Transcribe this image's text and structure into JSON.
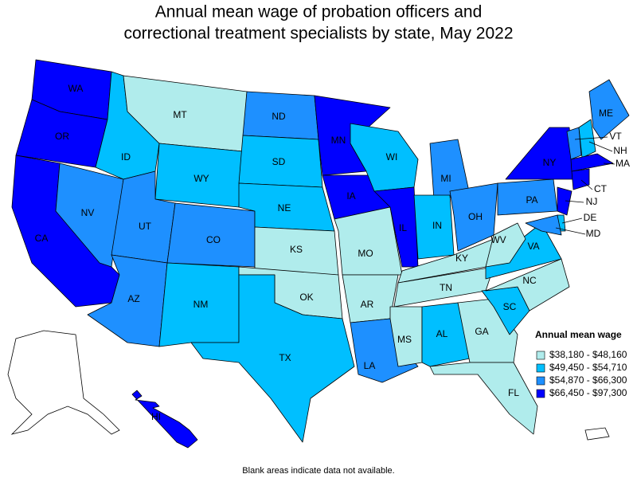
{
  "map": {
    "title": [
      "Annual mean wage of probation officers and",
      "correctional treatment specialists by state, May 2022"
    ],
    "legend": {
      "title": "Annual mean wage",
      "classes": [
        {
          "label": "$38,180 - $48,160",
          "color": "#b0ecec"
        },
        {
          "label": "$49,450 - $54,710",
          "color": "#00bfff"
        },
        {
          "label": "$54,870 - $66,300",
          "color": "#1e90ff"
        },
        {
          "label": "$66,450 - $97,300",
          "color": "#0000ff"
        }
      ]
    },
    "footnote": "Blank areas indicate data not available.",
    "states": [
      {
        "abbr": "WA",
        "color": "#0000ff"
      },
      {
        "abbr": "OR",
        "color": "#0000ff"
      },
      {
        "abbr": "CA",
        "color": "#0000ff"
      },
      {
        "abbr": "NV",
        "color": "#1e90ff"
      },
      {
        "abbr": "ID",
        "color": "#00bfff"
      },
      {
        "abbr": "MT",
        "color": "#b0ecec"
      },
      {
        "abbr": "WY",
        "color": "#00bfff"
      },
      {
        "abbr": "UT",
        "color": "#1e90ff"
      },
      {
        "abbr": "CO",
        "color": "#1e90ff"
      },
      {
        "abbr": "AZ",
        "color": "#1e90ff"
      },
      {
        "abbr": "NM",
        "color": "#00bfff"
      },
      {
        "abbr": "ND",
        "color": "#1e90ff"
      },
      {
        "abbr": "SD",
        "color": "#00bfff"
      },
      {
        "abbr": "NE",
        "color": "#00bfff"
      },
      {
        "abbr": "KS",
        "color": "#b0ecec"
      },
      {
        "abbr": "OK",
        "color": "#b0ecec"
      },
      {
        "abbr": "TX",
        "color": "#00bfff"
      },
      {
        "abbr": "MN",
        "color": "#0000ff"
      },
      {
        "abbr": "IA",
        "color": "#0000ff"
      },
      {
        "abbr": "MO",
        "color": "#b0ecec"
      },
      {
        "abbr": "AR",
        "color": "#b0ecec"
      },
      {
        "abbr": "LA",
        "color": "#1e90ff"
      },
      {
        "abbr": "WI",
        "color": "#00bfff"
      },
      {
        "abbr": "IL",
        "color": "#0000ff"
      },
      {
        "abbr": "MI",
        "color": "#1e90ff"
      },
      {
        "abbr": "IN",
        "color": "#00bfff"
      },
      {
        "abbr": "OH",
        "color": "#1e90ff"
      },
      {
        "abbr": "KY",
        "color": "#b0ecec"
      },
      {
        "abbr": "TN",
        "color": "#b0ecec"
      },
      {
        "abbr": "MS",
        "color": "#b0ecec"
      },
      {
        "abbr": "AL",
        "color": "#00bfff"
      },
      {
        "abbr": "GA",
        "color": "#b0ecec"
      },
      {
        "abbr": "FL",
        "color": "#b0ecec"
      },
      {
        "abbr": "SC",
        "color": "#00bfff"
      },
      {
        "abbr": "NC",
        "color": "#b0ecec"
      },
      {
        "abbr": "VA",
        "color": "#00bfff"
      },
      {
        "abbr": "WV",
        "color": "#b0ecec"
      },
      {
        "abbr": "PA",
        "color": "#1e90ff"
      },
      {
        "abbr": "NY",
        "color": "#0000ff"
      },
      {
        "abbr": "ME",
        "color": "#1e90ff"
      },
      {
        "abbr": "VT",
        "color": "#1e90ff"
      },
      {
        "abbr": "NH",
        "color": "#00bfff"
      },
      {
        "abbr": "MA",
        "color": "#0000ff"
      },
      {
        "abbr": "CT",
        "color": "#0000ff"
      },
      {
        "abbr": "NJ",
        "color": "#0000ff"
      },
      {
        "abbr": "DE",
        "color": "#00bfff"
      },
      {
        "abbr": "MD",
        "color": "#1e90ff"
      },
      {
        "abbr": "HI",
        "color": "#0000ff"
      }
    ]
  }
}
